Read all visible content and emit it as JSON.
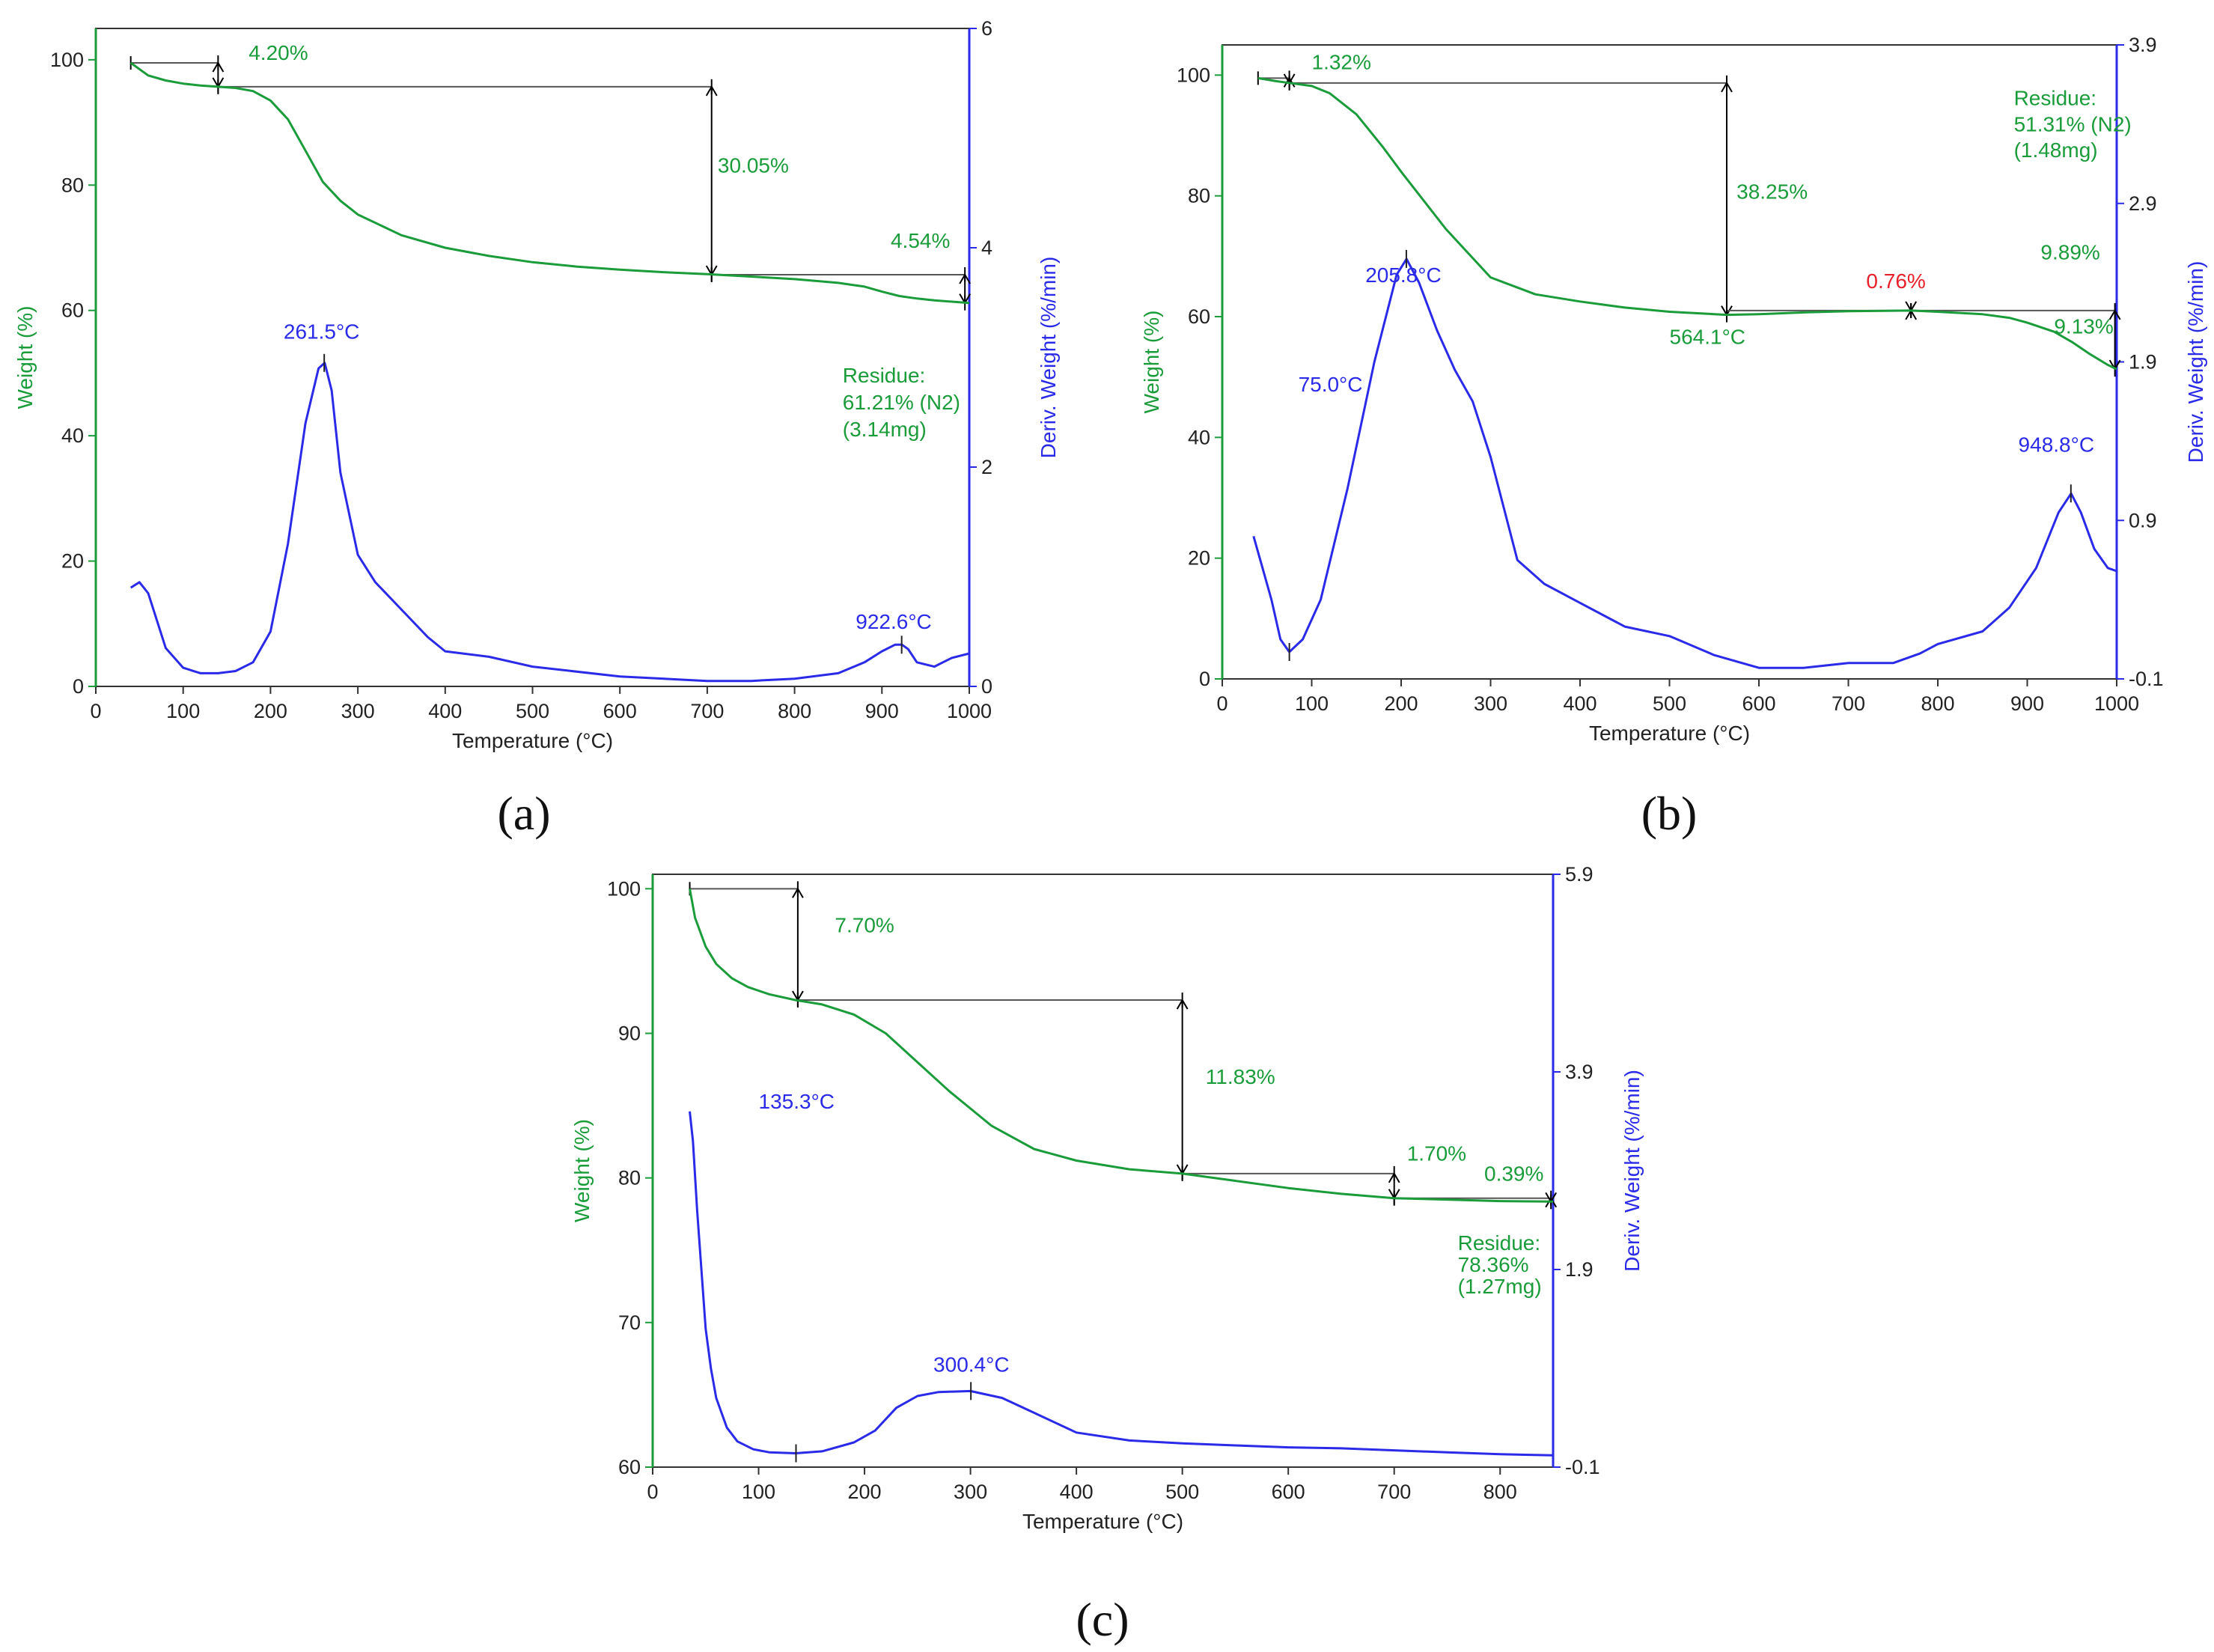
{
  "colors": {
    "weight": "#1a9c3a",
    "deriv": "#2a2ae8",
    "red": "#e8202a",
    "frame": "#333333",
    "marker": "#000000"
  },
  "chart_data": [
    {
      "type": "line",
      "panel_label_text": "(a)",
      "panel_letter": "a",
      "xlabel": "Temperature (°C)",
      "ylabel": "Weight (%)",
      "y2label": "Deriv. Weight (%/min)",
      "xlim": [
        0,
        1000
      ],
      "ylim": [
        0,
        105
      ],
      "y2lim": [
        0,
        6
      ],
      "xticks": [
        "0",
        "100",
        "200",
        "300",
        "400",
        "500",
        "600",
        "700",
        "800",
        "900",
        "1000"
      ],
      "xtick_values": [
        0,
        100,
        200,
        300,
        400,
        500,
        600,
        700,
        800,
        900,
        1000
      ],
      "yticks": [
        "0",
        "20",
        "40",
        "60",
        "80",
        "100"
      ],
      "ytick_values": [
        0,
        20,
        40,
        60,
        80,
        100
      ],
      "y2ticks": [
        "0",
        "2",
        "4",
        "6"
      ],
      "y2tick_values": [
        0,
        2,
        4,
        6
      ],
      "series": [
        {
          "name": "Weight",
          "axis": "left",
          "x": [
            40,
            60,
            80,
            100,
            120,
            140,
            160,
            180,
            200,
            220,
            240,
            260,
            280,
            300,
            350,
            400,
            450,
            500,
            550,
            600,
            650,
            700,
            750,
            800,
            850,
            880,
            900,
            920,
            940,
            960,
            980,
            1000
          ],
          "y": [
            99.5,
            97.5,
            96.7,
            96.2,
            95.9,
            95.7,
            95.5,
            95.0,
            93.5,
            90.5,
            85.5,
            80.5,
            77.5,
            75.3,
            72.0,
            70.0,
            68.7,
            67.7,
            67.0,
            66.5,
            66.1,
            65.8,
            65.4,
            65.0,
            64.4,
            63.8,
            63.0,
            62.3,
            61.9,
            61.6,
            61.4,
            61.2
          ]
        },
        {
          "name": "Deriv. Weight",
          "axis": "right",
          "x": [
            40,
            50,
            60,
            70,
            80,
            100,
            120,
            140,
            160,
            180,
            200,
            220,
            240,
            255,
            262,
            270,
            280,
            300,
            320,
            350,
            380,
            400,
            450,
            500,
            600,
            700,
            750,
            800,
            850,
            880,
            900,
            915,
            923,
            930,
            940,
            960,
            980,
            1000
          ],
          "y": [
            0.9,
            0.95,
            0.85,
            0.6,
            0.35,
            0.17,
            0.12,
            0.12,
            0.14,
            0.22,
            0.5,
            1.3,
            2.4,
            2.9,
            2.95,
            2.7,
            1.95,
            1.2,
            0.95,
            0.7,
            0.45,
            0.32,
            0.27,
            0.18,
            0.09,
            0.05,
            0.05,
            0.07,
            0.12,
            0.22,
            0.32,
            0.38,
            0.38,
            0.34,
            0.22,
            0.18,
            0.26,
            0.3
          ]
        }
      ],
      "peak_marks": [
        {
          "x": 261.5,
          "y2": 2.95
        },
        {
          "x": 922.6,
          "y2": 0.38
        }
      ],
      "steps": [
        {
          "x": 140,
          "y_top": 99.5,
          "y_bottom": 95.7,
          "left_x": 40
        },
        {
          "x": 705,
          "y_top": 95.7,
          "y_bottom": 65.7,
          "left_x": 140
        },
        {
          "x": 995,
          "y_top": 65.7,
          "y_bottom": 61.2,
          "left_x": 705
        }
      ],
      "annotations": [
        {
          "text": "4.20%",
          "x": 175,
          "y": 100,
          "color": "weight"
        },
        {
          "text": "30.05%",
          "x": 712,
          "y": 82,
          "color": "weight"
        },
        {
          "text": "4.54%",
          "x": 910,
          "y": 70,
          "color": "weight"
        },
        {
          "text": "261.5°C",
          "x": 215,
          "y": 55.5,
          "color": "deriv"
        },
        {
          "text": "922.6°C",
          "x": 870,
          "y": 9.2,
          "color": "deriv"
        },
        {
          "text": "Residue:",
          "x": 855,
          "y": 48.5,
          "color": "weight"
        },
        {
          "text": "61.21% (N2)",
          "x": 855,
          "y": 44.2,
          "color": "weight"
        },
        {
          "text": "(3.14mg)",
          "x": 855,
          "y": 39.9,
          "color": "weight"
        }
      ]
    },
    {
      "type": "line",
      "panel_label_text": "(b)",
      "panel_letter": "b",
      "xlabel": "Temperature (°C)",
      "ylabel": "Weight (%)",
      "y2label": "Deriv. Weight (%/min)",
      "xlim": [
        0,
        1000
      ],
      "ylim": [
        0,
        105
      ],
      "y2lim": [
        -0.1,
        3.9
      ],
      "xticks": [
        "0",
        "100",
        "200",
        "300",
        "400",
        "500",
        "600",
        "700",
        "800",
        "900",
        "1000"
      ],
      "xtick_values": [
        0,
        100,
        200,
        300,
        400,
        500,
        600,
        700,
        800,
        900,
        1000
      ],
      "yticks": [
        "0",
        "20",
        "40",
        "60",
        "80",
        "100"
      ],
      "ytick_values": [
        0,
        20,
        40,
        60,
        80,
        100
      ],
      "y2ticks": [
        "-0.1",
        "0.9",
        "1.9",
        "2.9",
        "3.9"
      ],
      "y2tick_values": [
        -0.1,
        0.9,
        1.9,
        2.9,
        3.9
      ],
      "series": [
        {
          "name": "Weight",
          "axis": "left",
          "x": [
            40,
            60,
            75,
            100,
            120,
            150,
            180,
            200,
            250,
            300,
            350,
            400,
            450,
            500,
            564,
            600,
            650,
            700,
            770,
            800,
            850,
            880,
            900,
            930,
            950,
            970,
            990,
            1000
          ],
          "y": [
            99.5,
            99.0,
            98.7,
            98.2,
            97.0,
            93.5,
            88.0,
            84.0,
            74.5,
            66.5,
            63.7,
            62.5,
            61.5,
            60.8,
            60.3,
            60.4,
            60.7,
            60.9,
            61.0,
            60.8,
            60.4,
            59.8,
            59.0,
            57.5,
            55.8,
            53.8,
            52.0,
            51.3
          ]
        },
        {
          "name": "Deriv. Weight",
          "axis": "right",
          "x": [
            35,
            45,
            55,
            65,
            75,
            90,
            110,
            140,
            170,
            195,
            206,
            220,
            240,
            260,
            280,
            300,
            330,
            360,
            400,
            450,
            500,
            550,
            600,
            650,
            700,
            750,
            780,
            800,
            850,
            880,
            910,
            935,
            949,
            960,
            975,
            990,
            1000
          ],
          "y": [
            0.8,
            0.6,
            0.4,
            0.15,
            0.07,
            0.15,
            0.4,
            1.1,
            1.9,
            2.45,
            2.55,
            2.4,
            2.1,
            1.85,
            1.65,
            1.3,
            0.65,
            0.5,
            0.38,
            0.23,
            0.17,
            0.05,
            -0.03,
            -0.03,
            0.0,
            0.0,
            0.06,
            0.12,
            0.2,
            0.35,
            0.6,
            0.95,
            1.07,
            0.95,
            0.72,
            0.6,
            0.58
          ]
        }
      ],
      "peak_marks": [
        {
          "x": 75.0,
          "y2": 0.07
        },
        {
          "x": 205.8,
          "y2": 2.55
        },
        {
          "x": 948.8,
          "y2": 1.07
        }
      ],
      "steps": [
        {
          "x": 75,
          "y_top": 99.5,
          "y_bottom": 98.7,
          "left_x": 40
        },
        {
          "x": 564,
          "y_top": 98.7,
          "y_bottom": 60.3,
          "left_x": 75
        },
        {
          "x": 770,
          "y_top": 61.0,
          "y_bottom": 61.0,
          "left_x": 564
        },
        {
          "x": 998,
          "y_top": 61.0,
          "y_bottom": 51.3,
          "left_x": 770
        }
      ],
      "annotations": [
        {
          "text": "1.32%",
          "x": 100,
          "y": 101,
          "color": "weight"
        },
        {
          "text": "38.25%",
          "x": 575,
          "y": 79.5,
          "color": "weight"
        },
        {
          "text": "564.1°C",
          "x": 500,
          "y": 55.5,
          "color": "weight"
        },
        {
          "text": "0.76%",
          "x": 720,
          "y": 64.7,
          "color": "red"
        },
        {
          "text": "9.89%",
          "x": 915,
          "y": 69.5,
          "color": "weight"
        },
        {
          "text": "9.13%",
          "x": 930,
          "y": 57.2,
          "color": "weight"
        },
        {
          "text": "Residue:",
          "x": 885,
          "y": 95,
          "color": "weight"
        },
        {
          "text": "51.31% (N2)",
          "x": 885,
          "y": 90.7,
          "color": "weight"
        },
        {
          "text": "(1.48mg)",
          "x": 885,
          "y": 86.4,
          "color": "weight"
        },
        {
          "text": "205.8°C",
          "x": 160,
          "y": 65.7,
          "color": "deriv"
        },
        {
          "text": "75.0°C",
          "x": 85,
          "y": 47.6,
          "color": "deriv"
        },
        {
          "text": "948.8°C",
          "x": 890,
          "y": 37.6,
          "color": "deriv"
        }
      ]
    },
    {
      "type": "line",
      "panel_label_text": "(c)",
      "panel_letter": "c",
      "xlabel": "Temperature (°C)",
      "ylabel": "Weight (%)",
      "y2label": "Deriv. Weight (%/min)",
      "xlim": [
        0,
        850
      ],
      "ylim": [
        60,
        101
      ],
      "y2lim": [
        -0.1,
        5.9
      ],
      "xticks": [
        "0",
        "100",
        "200",
        "300",
        "400",
        "500",
        "600",
        "700",
        "800"
      ],
      "xtick_values": [
        0,
        100,
        200,
        300,
        400,
        500,
        600,
        700,
        800
      ],
      "yticks": [
        "60",
        "70",
        "80",
        "90",
        "100"
      ],
      "ytick_values": [
        60,
        70,
        80,
        90,
        100
      ],
      "y2ticks": [
        "-0.1",
        "1.9",
        "3.9",
        "5.9"
      ],
      "y2tick_values": [
        -0.1,
        1.9,
        3.9,
        5.9
      ],
      "series": [
        {
          "name": "Weight",
          "axis": "left",
          "x": [
            35,
            40,
            50,
            60,
            75,
            90,
            110,
            135,
            160,
            190,
            220,
            250,
            280,
            320,
            360,
            400,
            450,
            500,
            550,
            600,
            650,
            700,
            750,
            800,
            850
          ],
          "y": [
            100,
            98.0,
            96.0,
            94.8,
            93.8,
            93.2,
            92.7,
            92.3,
            92.0,
            91.3,
            90.0,
            88.0,
            86.0,
            83.6,
            82.0,
            81.2,
            80.6,
            80.3,
            79.8,
            79.3,
            78.9,
            78.6,
            78.5,
            78.4,
            78.36
          ]
        },
        {
          "name": "Deriv. Weight",
          "axis": "right",
          "x": [
            35,
            38,
            42,
            46,
            50,
            55,
            60,
            70,
            80,
            95,
            110,
            135,
            160,
            190,
            210,
            230,
            250,
            270,
            300,
            330,
            360,
            400,
            450,
            500,
            550,
            600,
            650,
            700,
            750,
            800,
            850
          ],
          "y": [
            3.5,
            3.2,
            2.5,
            1.9,
            1.3,
            0.9,
            0.6,
            0.3,
            0.16,
            0.08,
            0.05,
            0.04,
            0.06,
            0.15,
            0.27,
            0.5,
            0.62,
            0.66,
            0.67,
            0.6,
            0.45,
            0.25,
            0.17,
            0.14,
            0.12,
            0.1,
            0.09,
            0.07,
            0.05,
            0.03,
            0.02
          ]
        }
      ],
      "peak_marks": [
        {
          "x": 135.3,
          "y2": 0.04
        },
        {
          "x": 300.4,
          "y2": 0.67
        }
      ],
      "steps": [
        {
          "x": 137,
          "y_top": 100,
          "y_bottom": 92.3,
          "left_x": 35
        },
        {
          "x": 500,
          "y_top": 92.3,
          "y_bottom": 80.3,
          "left_x": 137
        },
        {
          "x": 700,
          "y_top": 80.3,
          "y_bottom": 78.6,
          "left_x": 500
        },
        {
          "x": 848,
          "y_top": 78.6,
          "y_bottom": 78.36,
          "left_x": 700
        }
      ],
      "annotations": [
        {
          "text": "7.70%",
          "x": 172,
          "y": 97,
          "color": "weight"
        },
        {
          "text": "11.83%",
          "x": 522,
          "y": 86.5,
          "color": "weight"
        },
        {
          "text": "1.70%",
          "x": 712,
          "y": 81.2,
          "color": "weight"
        },
        {
          "text": "0.39%",
          "x": 785,
          "y": 79.8,
          "color": "weight"
        },
        {
          "text": "Residue:",
          "x": 760,
          "y": 75.0,
          "color": "weight"
        },
        {
          "text": "78.36%",
          "x": 760,
          "y": 73.5,
          "color": "weight"
        },
        {
          "text": "(1.27mg)",
          "x": 760,
          "y": 72.0,
          "color": "weight"
        },
        {
          "text": "135.3°C",
          "x": 100,
          "y": 84.8,
          "color": "deriv"
        },
        {
          "text": "300.4°C",
          "x": 265,
          "y": 66.6,
          "color": "deriv"
        }
      ]
    }
  ]
}
